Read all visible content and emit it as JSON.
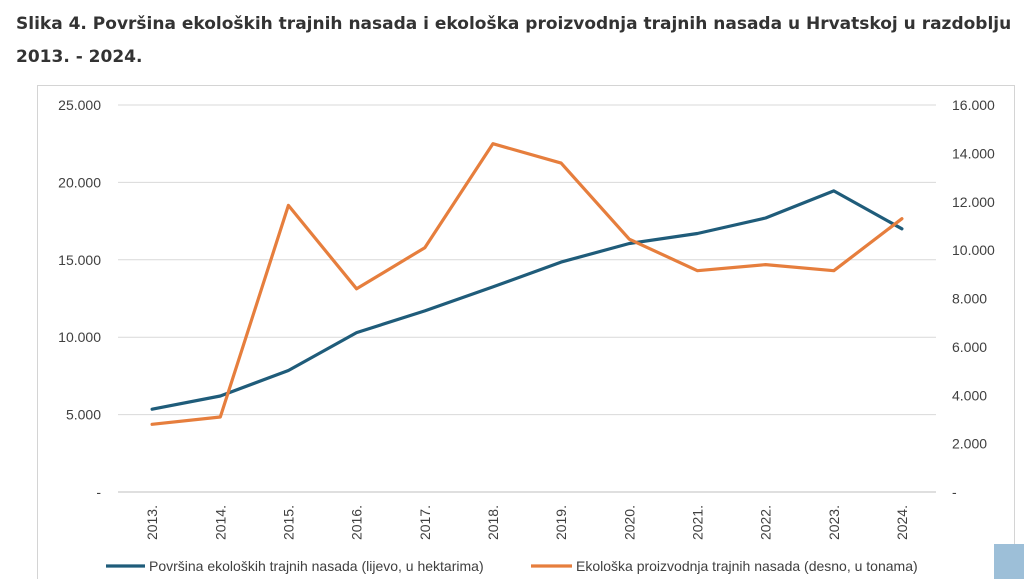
{
  "title": "Slika 4. Površina ekoloških trajnih nasada i ekološka proizvodnja trajnih nasada u Hrvatskoj u razdoblju 2013. - 2024.",
  "chart_data": {
    "type": "line",
    "categories": [
      "2013.",
      "2014.",
      "2015.",
      "2016.",
      "2017.",
      "2018.",
      "2019.",
      "2020.",
      "2021.",
      "2022.",
      "2023.",
      "2024."
    ],
    "y_left": {
      "ticks": [
        "-",
        "5.000",
        "10.000",
        "15.000",
        "20.000",
        "25.000"
      ],
      "range": [
        0,
        25000
      ]
    },
    "y_right": {
      "ticks": [
        "-",
        "2.000",
        "4.000",
        "6.000",
        "8.000",
        "10.000",
        "12.000",
        "14.000",
        "16.000"
      ],
      "range": [
        0,
        16000
      ]
    },
    "grid": true,
    "legend_position": "bottom",
    "series": [
      {
        "name": "Površina ekoloških trajnih nasada (lijevo, u hektarima)",
        "axis": "left",
        "color": "#1f5c7a",
        "values": [
          5350,
          6200,
          7850,
          10300,
          11700,
          13250,
          14850,
          16050,
          16700,
          17700,
          19450,
          17000
        ]
      },
      {
        "name": "Ekološka proizvodnja trajnih nasada (desno, u tonama)",
        "axis": "right",
        "color": "#e67e3d",
        "values": [
          2800,
          3100,
          11850,
          8400,
          10100,
          14400,
          13600,
          10450,
          9150,
          9400,
          9150,
          11300
        ]
      }
    ]
  }
}
